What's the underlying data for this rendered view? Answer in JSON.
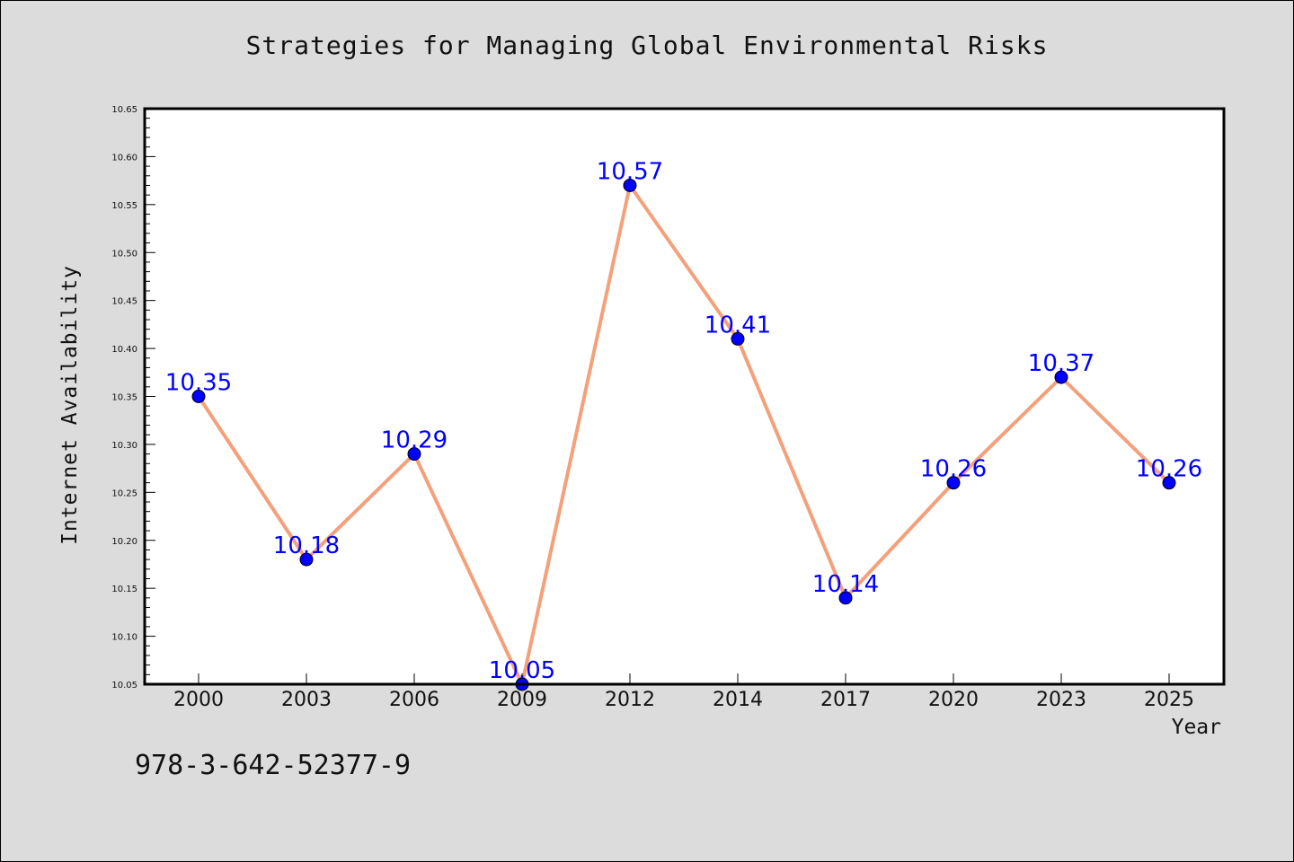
{
  "chart_data": {
    "type": "line",
    "title": "Strategies for Managing Global Environmental Risks",
    "xlabel": "Year",
    "ylabel": "Internet Availability",
    "categories": [
      "2000",
      "2003",
      "2006",
      "2009",
      "2012",
      "2014",
      "2017",
      "2020",
      "2023",
      "2025"
    ],
    "series": [
      {
        "values": [
          10.35,
          10.18,
          10.29,
          10.05,
          10.57,
          10.41,
          10.14,
          10.26,
          10.37,
          10.26
        ]
      }
    ],
    "data_labels": [
      "10.35",
      "10.18",
      "10.29",
      "10.05",
      "10.57",
      "10.41",
      "10.14",
      "10.26",
      "10.37",
      "10.26"
    ],
    "ylim": [
      10.05,
      10.65
    ],
    "yticks": [
      "10.05",
      "10.10",
      "10.15",
      "10.20",
      "10.25",
      "10.30",
      "10.35",
      "10.40",
      "10.45",
      "10.50",
      "10.55",
      "10.60",
      "10.65"
    ],
    "grid": false,
    "legend": "none",
    "colors": {
      "line": "#f4a07a",
      "marker": "#0000ff",
      "data_label": "#0000ff",
      "background": "#dcdcdc",
      "plot_background": "#ffffff"
    }
  },
  "footer": {
    "isbn": "978-3-642-52377-9"
  }
}
